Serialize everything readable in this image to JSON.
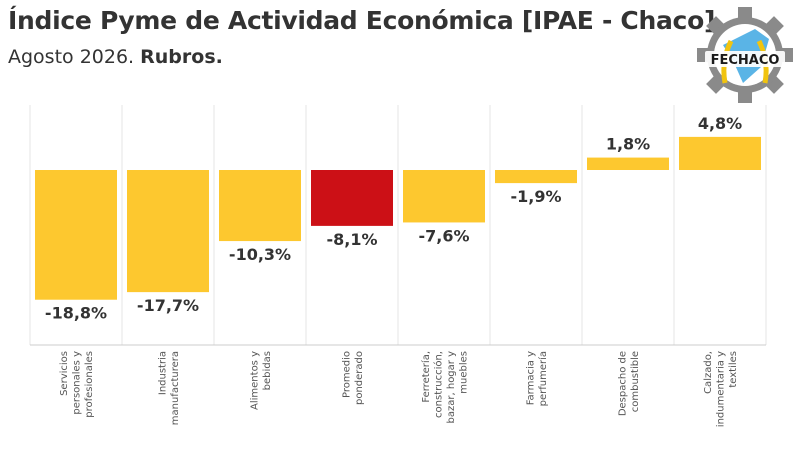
{
  "header": {
    "title": "Índice Pyme de Actividad Económica [IPAE - Chaco]",
    "subtitle_date": "Agosto 2026.",
    "subtitle_section": "Rubros."
  },
  "logo": {
    "text": "FECHACO",
    "colors": {
      "gear": "#8a8a8a",
      "ring": "#1a1a1a",
      "fill": "#5ab4e6",
      "wheat": "#f1c40f"
    }
  },
  "chart_data": {
    "type": "bar",
    "categories": [
      [
        "Servicios",
        "personales y",
        "profesionales"
      ],
      [
        "Industria",
        "manufacturera"
      ],
      [
        "Alimentos y",
        "bebidas"
      ],
      [
        "Promedio",
        "ponderado"
      ],
      [
        "Ferretería,",
        "construcción,",
        "bazar, hogar y",
        "muebles"
      ],
      [
        "Farmacia y",
        "perfumería"
      ],
      [
        "Despacho de",
        "combustible"
      ],
      [
        "Calzado,",
        "indumentaria y",
        "textiles"
      ]
    ],
    "values": [
      -18.8,
      -17.7,
      -10.3,
      -8.1,
      -7.6,
      -1.9,
      1.8,
      4.8
    ],
    "value_labels": [
      "-18,8%",
      "-17,7%",
      "-10,3%",
      "-8,1%",
      "-7,6%",
      "-1,9%",
      "1,8%",
      "4,8%"
    ],
    "colors": [
      "#fdc82f",
      "#fdc82f",
      "#fdc82f",
      "#cc1016",
      "#fdc82f",
      "#fdc82f",
      "#fdc82f",
      "#fdc82f"
    ],
    "grid": "vertical",
    "legend": "none"
  }
}
